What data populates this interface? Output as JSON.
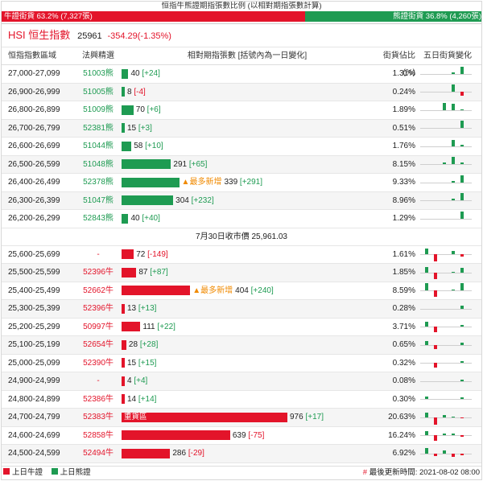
{
  "ratio": {
    "title": "恒指牛熊證期指張數比例 (以相對期指張數計算)",
    "bull_label": "牛證街貨 63.2% (7,327張)",
    "bear_label": "熊證街貨 36.8% (4,260張)",
    "bull_pct": 63.2
  },
  "index": {
    "name": "HSI 恒生指數",
    "value": "25961",
    "change": "-354.29(-1.35%)"
  },
  "columns": {
    "range": "恒指指數區域",
    "code": "法興精選",
    "contracts": "相對期指張數 [括號內為一日變化]",
    "pct": "街貨佔比(%)",
    "trend": "五日街貨變化"
  },
  "colors": {
    "bull": "#e3142a",
    "bear": "#1e9b52",
    "new_max": "#f08a00"
  },
  "max_count": 976,
  "bear_rows": [
    {
      "range": "27,000-27,099",
      "code": "51003熊",
      "count": 40,
      "change": "+24",
      "pct": "1.31%",
      "trend": [
        0,
        0,
        0,
        0.25,
        1.0
      ]
    },
    {
      "range": "26,900-26,999",
      "code": "51005熊",
      "count": 8,
      "change": "-4",
      "pct": "0.24%",
      "trend": [
        0,
        0,
        0,
        1.0,
        -0.5
      ]
    },
    {
      "range": "26,800-26,899",
      "code": "51009熊",
      "count": 70,
      "change": "+6",
      "pct": "1.89%",
      "trend": [
        0,
        0,
        1.0,
        0.9,
        0.1
      ]
    },
    {
      "range": "26,700-26,799",
      "code": "52381熊",
      "count": 15,
      "change": "+3",
      "pct": "0.51%",
      "trend": [
        0,
        0,
        0,
        0,
        1.0
      ]
    },
    {
      "range": "26,600-26,699",
      "code": "51044熊",
      "count": 58,
      "change": "+10",
      "pct": "1.76%",
      "trend": [
        0,
        0,
        0,
        0.85,
        0.2
      ]
    },
    {
      "range": "26,500-26,599",
      "code": "51048熊",
      "count": 291,
      "change": "+65",
      "pct": "8.15%",
      "trend": [
        0,
        0,
        0.3,
        1.0,
        0.25
      ]
    },
    {
      "range": "26,400-26,499",
      "code": "52378熊",
      "count": 339,
      "change": "+291",
      "pct": "9.33%",
      "trend": [
        0,
        0,
        0,
        0.15,
        1.0
      ],
      "new_max": "▲最多新增"
    },
    {
      "range": "26,300-26,399",
      "code": "51047熊",
      "count": 304,
      "change": "+232",
      "pct": "8.96%",
      "trend": [
        0,
        0,
        0,
        0.2,
        1.0
      ]
    },
    {
      "range": "26,200-26,299",
      "code": "52843熊",
      "count": 40,
      "change": "+40",
      "pct": "1.29%",
      "trend": [
        0,
        0,
        0,
        0,
        1.0
      ]
    }
  ],
  "close_text": "7月30日收市價 25,961.03",
  "bull_rows": [
    {
      "range": "25,600-25,699",
      "code": "-",
      "count": 72,
      "change": "-149",
      "pct": "1.61%",
      "trend": [
        0.8,
        -1.0,
        0,
        0.5,
        -0.3
      ]
    },
    {
      "range": "25,500-25,599",
      "code": "52396牛",
      "count": 87,
      "change": "+87",
      "pct": "1.85%",
      "trend": [
        0.7,
        -0.9,
        0,
        0.1,
        0.6
      ]
    },
    {
      "range": "25,400-25,499",
      "code": "52662牛",
      "count": 404,
      "change": "+240",
      "pct": "8.59%",
      "trend": [
        1.0,
        -0.9,
        0,
        0.1,
        1.0
      ],
      "new_max": "▲最多新增"
    },
    {
      "range": "25,300-25,399",
      "code": "52396牛",
      "count": 13,
      "change": "+13",
      "pct": "0.28%",
      "trend": [
        0,
        0,
        0,
        0,
        0.4
      ]
    },
    {
      "range": "25,200-25,299",
      "code": "50997牛",
      "count": 111,
      "change": "+22",
      "pct": "3.71%",
      "trend": [
        0.7,
        -0.7,
        0,
        0,
        0.3
      ]
    },
    {
      "range": "25,100-25,199",
      "code": "52654牛",
      "count": 28,
      "change": "+28",
      "pct": "0.65%",
      "trend": [
        0.5,
        -0.6,
        0,
        0,
        0.3
      ]
    },
    {
      "range": "25,000-25,099",
      "code": "52390牛",
      "count": 15,
      "change": "+15",
      "pct": "0.32%",
      "trend": [
        0,
        -0.6,
        0,
        0,
        0.3
      ]
    },
    {
      "range": "24,900-24,999",
      "code": "-",
      "count": 4,
      "change": "+4",
      "pct": "0.08%",
      "trend": [
        0,
        0,
        0,
        0,
        0.2
      ]
    },
    {
      "range": "24,800-24,899",
      "code": "52386牛",
      "count": 14,
      "change": "+14",
      "pct": "0.30%",
      "trend": [
        0.4,
        0,
        0,
        0,
        0.3
      ]
    },
    {
      "range": "24,700-24,799",
      "code": "52383牛",
      "count": 976,
      "change": "+17",
      "pct": "20.63%",
      "trend": [
        0.6,
        -1.0,
        0.3,
        0.1,
        -0.1
      ],
      "inbar_label": "重貨區"
    },
    {
      "range": "24,600-24,699",
      "code": "52858牛",
      "count": 639,
      "change": "-75",
      "pct": "16.24%",
      "trend": [
        0.6,
        -0.8,
        0.3,
        0.3,
        -0.2
      ]
    },
    {
      "range": "24,500-24,599",
      "code": "52494牛",
      "count": 286,
      "change": "-29",
      "pct": "6.92%",
      "trend": [
        0.8,
        -0.4,
        0.4,
        -0.5,
        -0.2
      ]
    }
  ],
  "footer": {
    "legend_bull": "上日牛證",
    "legend_bear": "上日熊證",
    "hash": "#",
    "update_label": "最後更新時間: 2021-08-02 08:00"
  }
}
